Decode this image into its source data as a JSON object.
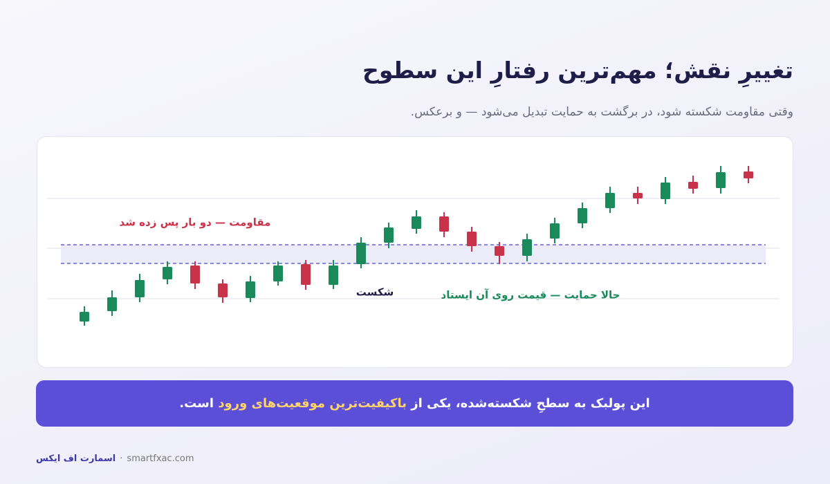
{
  "header": {
    "title": "تغییرِ نقش؛ مهم‌ترین رفتارِ این سطوح",
    "subtitle": "وقتی مقاومت شکسته شود، در برگشت به حمایت تبدیل می‌شود — و برعکس."
  },
  "chart_data": {
    "type": "candlestick",
    "up_color": "#1a8a5a",
    "down_color": "#c8334a",
    "ylim": [
      0,
      300
    ],
    "yticks": [
      68,
      141,
      213
    ],
    "grid": true,
    "zone": [
      119,
      146
    ],
    "candles": [
      {
        "open": 35,
        "high": 57,
        "low": 29,
        "close": 49
      },
      {
        "open": 50,
        "high": 80,
        "low": 43,
        "close": 70
      },
      {
        "open": 70,
        "high": 104,
        "low": 63,
        "close": 95
      },
      {
        "open": 96,
        "high": 122,
        "low": 89,
        "close": 114
      },
      {
        "open": 116,
        "high": 122,
        "low": 82,
        "close": 90
      },
      {
        "open": 90,
        "high": 96,
        "low": 62,
        "close": 70
      },
      {
        "open": 69,
        "high": 101,
        "low": 63,
        "close": 93
      },
      {
        "open": 93,
        "high": 122,
        "low": 87,
        "close": 116
      },
      {
        "open": 118,
        "high": 124,
        "low": 81,
        "close": 88
      },
      {
        "open": 88,
        "high": 124,
        "low": 82,
        "close": 116
      },
      {
        "open": 118,
        "high": 157,
        "low": 112,
        "close": 149
      },
      {
        "open": 149,
        "high": 178,
        "low": 141,
        "close": 171
      },
      {
        "open": 169,
        "high": 196,
        "low": 162,
        "close": 187
      },
      {
        "open": 187,
        "high": 193,
        "low": 157,
        "close": 165
      },
      {
        "open": 165,
        "high": 172,
        "low": 136,
        "close": 144
      },
      {
        "open": 144,
        "high": 150,
        "low": 118,
        "close": 130
      },
      {
        "open": 130,
        "high": 162,
        "low": 122,
        "close": 154
      },
      {
        "open": 155,
        "high": 185,
        "low": 148,
        "close": 177
      },
      {
        "open": 177,
        "high": 207,
        "low": 170,
        "close": 199
      },
      {
        "open": 199,
        "high": 230,
        "low": 192,
        "close": 221
      },
      {
        "open": 221,
        "high": 230,
        "low": 205,
        "close": 213
      },
      {
        "open": 212,
        "high": 244,
        "low": 205,
        "close": 236
      },
      {
        "open": 237,
        "high": 246,
        "low": 220,
        "close": 227
      },
      {
        "open": 228,
        "high": 260,
        "low": 220,
        "close": 251
      },
      {
        "open": 252,
        "high": 260,
        "low": 235,
        "close": 242
      }
    ],
    "annotations": {
      "resistance": "مقاومت — دو بار پس زده شد",
      "breakout": "شکست",
      "support": "حالا حمایت — قیمت روی آن ایستاد"
    }
  },
  "banner": {
    "before": "این پولبک به سطحِ شکسته‌شده، یکی از ",
    "highlight": "باکیفیت‌ترین موقعیت‌های ورود",
    "after": " است."
  },
  "footer": {
    "brand": "اسمارت اف ایکس",
    "separator": "·",
    "url": "smartfxac.com"
  }
}
